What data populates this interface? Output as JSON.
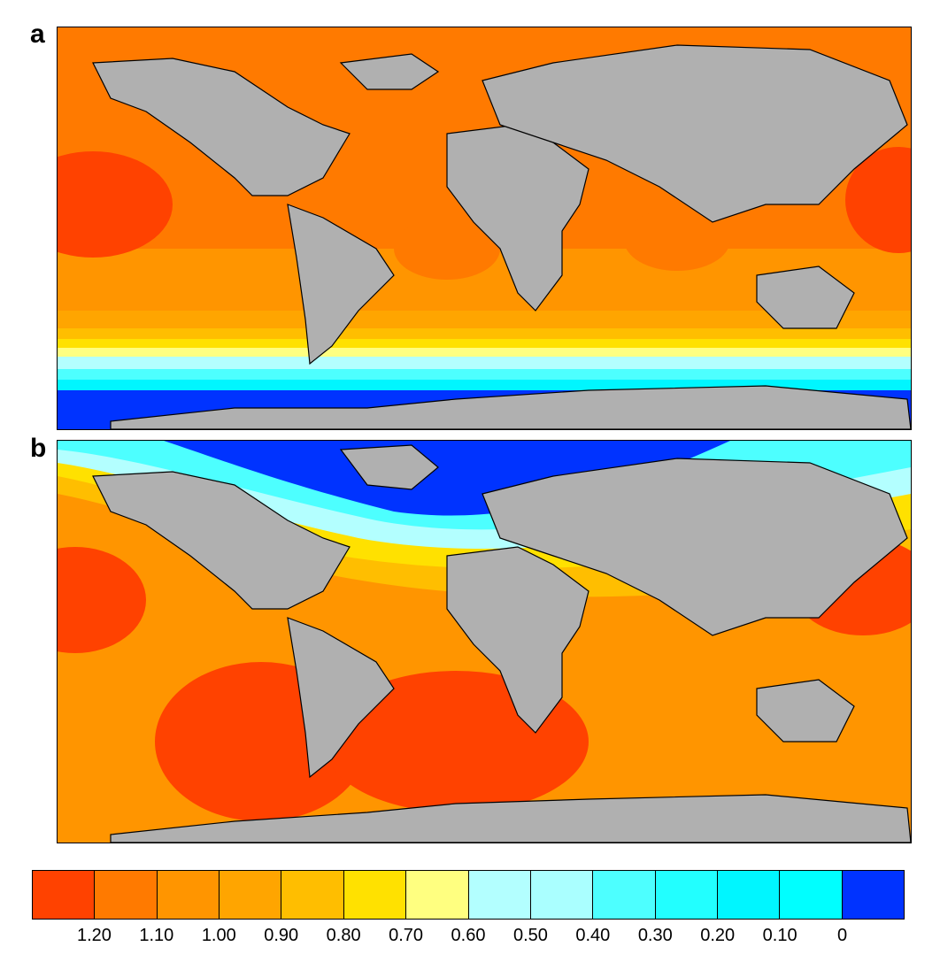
{
  "panels": [
    {
      "label": "a"
    },
    {
      "label": "b"
    }
  ],
  "colorbar": {
    "colors": [
      "#ff4200",
      "#ff7a00",
      "#ff9500",
      "#ffa500",
      "#ffbe00",
      "#ffe100",
      "#ffff80",
      "#b3ffff",
      "#aaffff",
      "#4dffff",
      "#22ffff",
      "#00f6ff",
      "#00ffff",
      "#0033ff"
    ],
    "tick_labels": [
      "1.20",
      "1.10",
      "1.00",
      "0.90",
      "0.80",
      "0.70",
      "0.60",
      "0.50",
      "0.40",
      "0.30",
      "0.20",
      "0.10",
      "0"
    ]
  },
  "colors": {
    "land": "#b0b0b0",
    "coast": "#000000"
  }
}
